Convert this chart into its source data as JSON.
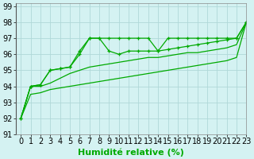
{
  "xlabel": "Humidité relative (%)",
  "bg_color": "#d4f2f2",
  "grid_color": "#b0d8d8",
  "line_color": "#00aa00",
  "xlim": [
    -0.5,
    23
  ],
  "ylim": [
    91,
    99.2
  ],
  "xticks": [
    0,
    1,
    2,
    3,
    4,
    5,
    6,
    7,
    8,
    9,
    10,
    11,
    12,
    13,
    14,
    15,
    16,
    17,
    18,
    19,
    20,
    21,
    22,
    23
  ],
  "yticks": [
    91,
    92,
    93,
    94,
    95,
    96,
    97,
    98,
    99
  ],
  "series": [
    {
      "y": [
        92,
        94,
        94.1,
        95,
        95.1,
        95.2,
        96.2,
        97,
        97,
        97,
        97,
        97,
        97,
        97,
        96.2,
        97,
        97,
        97,
        97,
        97,
        97,
        97,
        97,
        98
      ],
      "markers": true
    },
    {
      "y": [
        92,
        94,
        94.1,
        95,
        95.1,
        95.2,
        96.0,
        97,
        97,
        96.2,
        96,
        96.2,
        96.2,
        96.2,
        96.2,
        96.3,
        96.4,
        96.5,
        96.6,
        96.7,
        96.8,
        96.9,
        97,
        98
      ],
      "markers": true
    },
    {
      "y": [
        92,
        94,
        94,
        94.2,
        94.5,
        94.8,
        95.0,
        95.2,
        95.3,
        95.4,
        95.5,
        95.6,
        95.7,
        95.8,
        95.8,
        95.9,
        96.0,
        96.1,
        96.1,
        96.2,
        96.3,
        96.4,
        96.6,
        98
      ],
      "markers": false
    },
    {
      "y": [
        92,
        93.5,
        93.6,
        93.8,
        93.9,
        94.0,
        94.1,
        94.2,
        94.3,
        94.4,
        94.5,
        94.6,
        94.7,
        94.8,
        94.9,
        95.0,
        95.1,
        95.2,
        95.3,
        95.4,
        95.5,
        95.6,
        95.8,
        98
      ],
      "markers": false
    }
  ],
  "xlabel_fontsize": 8,
  "tick_fontsize": 7
}
